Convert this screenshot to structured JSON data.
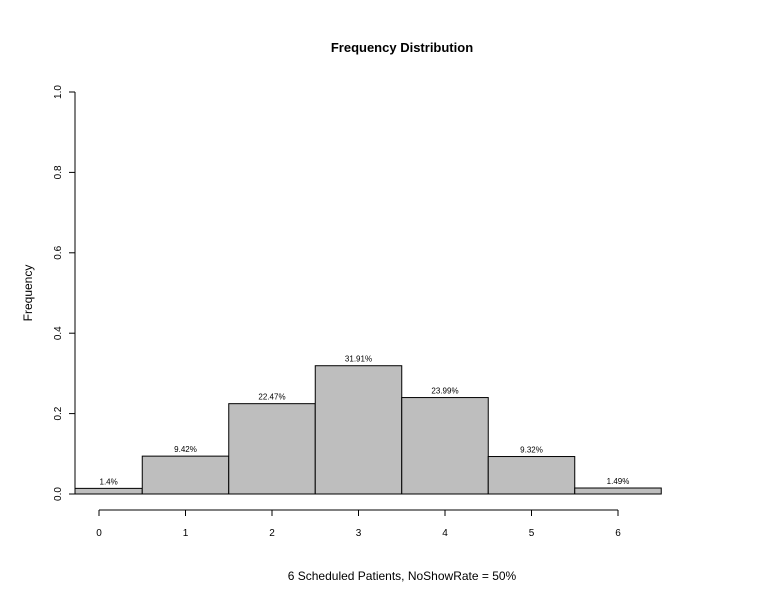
{
  "chart_data": {
    "type": "bar",
    "title": "Frequency Distribution",
    "xlabel": "6 Scheduled Patients,  NoShowRate = 50%",
    "ylabel": "Frequency",
    "categories": [
      "0",
      "1",
      "2",
      "3",
      "4",
      "5",
      "6"
    ],
    "values": [
      0.014,
      0.0942,
      0.2247,
      0.3191,
      0.2399,
      0.0932,
      0.0149
    ],
    "data_labels": [
      "1.4%",
      "9.42%",
      "22.47%",
      "31.91%",
      "23.99%",
      "9.32%",
      "1.49%"
    ],
    "ylim": [
      0,
      1
    ],
    "yticks": [
      "0.0",
      "0.2",
      "0.4",
      "0.6",
      "0.8",
      "1.0"
    ],
    "grid": false,
    "bar_color": "#bebebe",
    "edge_color": "#000000"
  }
}
